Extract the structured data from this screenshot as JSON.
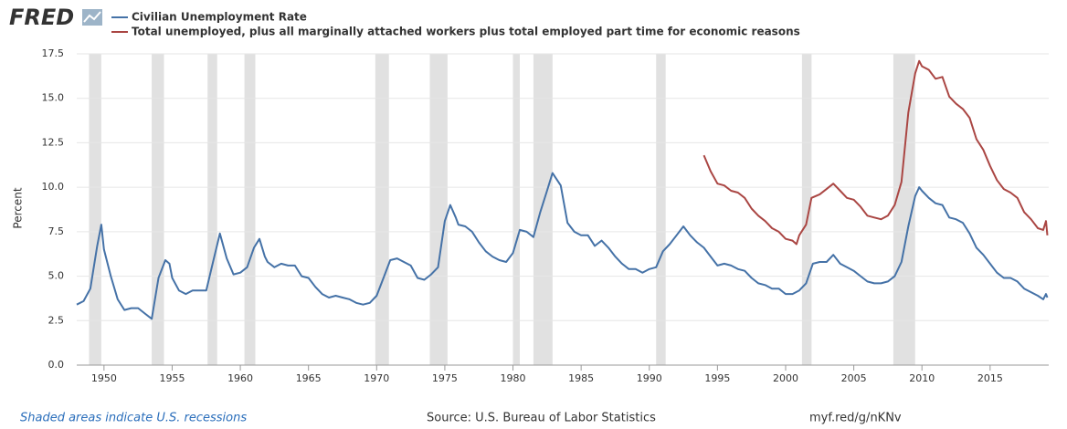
{
  "chart_data": {
    "type": "line",
    "logo": "FRED",
    "ylabel": "Percent",
    "note": "Shaded areas indicate U.S. recessions",
    "source": "Source: U.S. Bureau of Labor Statistics",
    "link": "myf.red/g/nKNv",
    "xlim": [
      1948,
      2019.3
    ],
    "xticks": [
      1950,
      1955,
      1960,
      1965,
      1970,
      1975,
      1980,
      1985,
      1990,
      1995,
      2000,
      2005,
      2010,
      2015
    ],
    "ylim": [
      0,
      17.5
    ],
    "yticks": [
      {
        "value": 0,
        "label": "0.0"
      },
      2.5,
      {
        "value": 5,
        "label": "5.0"
      },
      7.5,
      {
        "value": 10,
        "label": "10.0"
      },
      12.5,
      {
        "value": 15,
        "label": "15.0"
      },
      17.5
    ],
    "grid": true,
    "recession_color": "#e1e1e1",
    "recessions": [
      [
        1948.9,
        1949.8
      ],
      [
        1953.5,
        1954.4
      ],
      [
        1957.6,
        1958.3
      ],
      [
        1960.3,
        1961.1
      ],
      [
        1969.9,
        1970.9
      ],
      [
        1973.9,
        1975.2
      ],
      [
        1980.0,
        1980.5
      ],
      [
        1981.5,
        1982.9
      ],
      [
        1990.5,
        1991.2
      ],
      [
        2001.2,
        2001.9
      ],
      [
        2007.9,
        2009.5
      ]
    ],
    "series": [
      {
        "name": "Civilian Unemployment Rate",
        "color": "#4572a7",
        "x": [
          1948.0,
          1948.5,
          1949.0,
          1949.5,
          1949.8,
          1950.0,
          1950.5,
          1951.0,
          1951.5,
          1952.0,
          1952.5,
          1953.0,
          1953.5,
          1954.0,
          1954.5,
          1954.8,
          1955.0,
          1955.5,
          1956.0,
          1956.5,
          1957.0,
          1957.5,
          1958.0,
          1958.5,
          1959.0,
          1959.5,
          1960.0,
          1960.5,
          1961.0,
          1961.4,
          1961.8,
          1962.0,
          1962.5,
          1963.0,
          1963.5,
          1964.0,
          1964.5,
          1965.0,
          1965.5,
          1966.0,
          1966.5,
          1967.0,
          1967.5,
          1968.0,
          1968.5,
          1969.0,
          1969.5,
          1970.0,
          1970.5,
          1971.0,
          1971.5,
          1972.0,
          1972.5,
          1973.0,
          1973.5,
          1974.0,
          1974.5,
          1975.0,
          1975.4,
          1975.8,
          1976.0,
          1976.5,
          1977.0,
          1977.5,
          1978.0,
          1978.5,
          1979.0,
          1979.5,
          1980.0,
          1980.5,
          1981.0,
          1981.5,
          1982.0,
          1982.5,
          1982.9,
          1983.5,
          1984.0,
          1984.5,
          1985.0,
          1985.5,
          1986.0,
          1986.5,
          1987.0,
          1987.5,
          1988.0,
          1988.5,
          1989.0,
          1989.5,
          1990.0,
          1990.5,
          1991.0,
          1991.5,
          1992.0,
          1992.5,
          1993.0,
          1993.5,
          1994.0,
          1994.5,
          1995.0,
          1995.5,
          1996.0,
          1996.5,
          1997.0,
          1997.5,
          1998.0,
          1998.5,
          1999.0,
          1999.5,
          2000.0,
          2000.5,
          2001.0,
          2001.5,
          2002.0,
          2002.5,
          2003.0,
          2003.5,
          2004.0,
          2004.5,
          2005.0,
          2005.5,
          2006.0,
          2006.5,
          2007.0,
          2007.5,
          2008.0,
          2008.5,
          2009.0,
          2009.5,
          2009.8,
          2010.0,
          2010.5,
          2011.0,
          2011.5,
          2012.0,
          2012.5,
          2013.0,
          2013.5,
          2014.0,
          2014.5,
          2015.0,
          2015.5,
          2016.0,
          2016.5,
          2017.0,
          2017.5,
          2018.0,
          2018.5,
          2018.9,
          2019.1,
          2019.2
        ],
        "values": [
          3.4,
          3.6,
          4.3,
          6.7,
          7.9,
          6.5,
          5.0,
          3.7,
          3.1,
          3.2,
          3.2,
          2.9,
          2.6,
          4.9,
          5.9,
          5.7,
          4.9,
          4.2,
          4.0,
          4.2,
          4.2,
          4.2,
          5.8,
          7.4,
          6.0,
          5.1,
          5.2,
          5.5,
          6.6,
          7.1,
          6.1,
          5.8,
          5.5,
          5.7,
          5.6,
          5.6,
          5.0,
          4.9,
          4.4,
          4.0,
          3.8,
          3.9,
          3.8,
          3.7,
          3.5,
          3.4,
          3.5,
          3.9,
          4.9,
          5.9,
          6.0,
          5.8,
          5.6,
          4.9,
          4.8,
          5.1,
          5.5,
          8.1,
          9.0,
          8.3,
          7.9,
          7.8,
          7.5,
          6.9,
          6.4,
          6.1,
          5.9,
          5.8,
          6.3,
          7.6,
          7.5,
          7.2,
          8.6,
          9.8,
          10.8,
          10.1,
          8.0,
          7.5,
          7.3,
          7.3,
          6.7,
          7.0,
          6.6,
          6.1,
          5.7,
          5.4,
          5.4,
          5.2,
          5.4,
          5.5,
          6.4,
          6.8,
          7.3,
          7.8,
          7.3,
          6.9,
          6.6,
          6.1,
          5.6,
          5.7,
          5.6,
          5.4,
          5.3,
          4.9,
          4.6,
          4.5,
          4.3,
          4.3,
          4.0,
          4.0,
          4.2,
          4.6,
          5.7,
          5.8,
          5.8,
          6.2,
          5.7,
          5.5,
          5.3,
          5.0,
          4.7,
          4.6,
          4.6,
          4.7,
          5.0,
          5.8,
          7.8,
          9.5,
          10.0,
          9.8,
          9.4,
          9.1,
          9.0,
          8.3,
          8.2,
          8.0,
          7.4,
          6.6,
          6.2,
          5.7,
          5.2,
          4.9,
          4.9,
          4.7,
          4.3,
          4.1,
          3.9,
          3.7,
          4.0,
          3.8
        ]
      },
      {
        "name": "Total unemployed, plus all marginally attached workers plus total employed part time for economic reasons",
        "color": "#aa4643",
        "x": [
          1994.0,
          1994.5,
          1995.0,
          1995.5,
          1996.0,
          1996.5,
          1997.0,
          1997.5,
          1998.0,
          1998.5,
          1999.0,
          1999.5,
          2000.0,
          2000.5,
          2000.8,
          2001.0,
          2001.5,
          2001.9,
          2002.5,
          2003.0,
          2003.5,
          2004.0,
          2004.5,
          2005.0,
          2005.5,
          2006.0,
          2006.5,
          2007.0,
          2007.5,
          2008.0,
          2008.5,
          2009.0,
          2009.5,
          2009.8,
          2010.0,
          2010.5,
          2011.0,
          2011.5,
          2012.0,
          2012.5,
          2013.0,
          2013.5,
          2014.0,
          2014.5,
          2015.0,
          2015.5,
          2016.0,
          2016.5,
          2017.0,
          2017.5,
          2018.0,
          2018.5,
          2018.9,
          2019.1,
          2019.2
        ],
        "values": [
          11.8,
          10.9,
          10.2,
          10.1,
          9.8,
          9.7,
          9.4,
          8.8,
          8.4,
          8.1,
          7.7,
          7.5,
          7.1,
          7.0,
          6.8,
          7.3,
          7.9,
          9.4,
          9.6,
          9.9,
          10.2,
          9.8,
          9.4,
          9.3,
          8.9,
          8.4,
          8.3,
          8.2,
          8.4,
          9.0,
          10.3,
          14.2,
          16.4,
          17.1,
          16.8,
          16.6,
          16.1,
          16.2,
          15.1,
          14.7,
          14.4,
          13.9,
          12.7,
          12.1,
          11.2,
          10.4,
          9.9,
          9.7,
          9.4,
          8.6,
          8.2,
          7.7,
          7.6,
          8.1,
          7.3
        ]
      }
    ]
  }
}
